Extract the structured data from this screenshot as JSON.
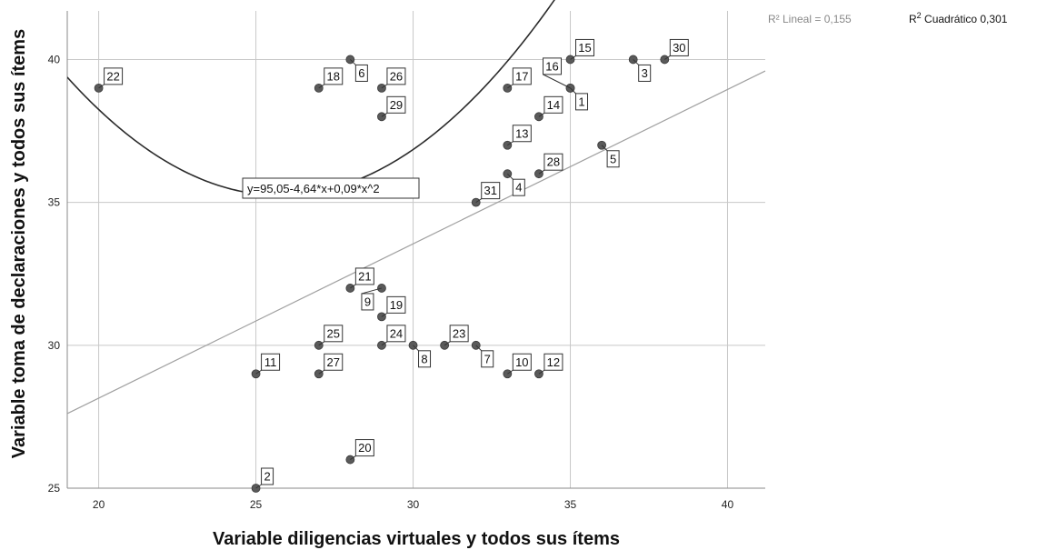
{
  "chart_data": {
    "type": "scatter",
    "xlabel": "Variable diligencias virtuales y todos sus ítems",
    "ylabel": "Variable toma de declaraciones y todos sus ítems",
    "xlim": [
      19,
      41.2
    ],
    "ylim": [
      25,
      41.7
    ],
    "x_ticks": [
      20,
      25,
      30,
      35,
      40
    ],
    "y_ticks": [
      25,
      30,
      35,
      40
    ],
    "grid": true,
    "points": [
      {
        "label": "1",
        "x": 35,
        "y": 39
      },
      {
        "label": "2",
        "x": 25,
        "y": 25
      },
      {
        "label": "3",
        "x": 37,
        "y": 40
      },
      {
        "label": "4",
        "x": 33,
        "y": 36
      },
      {
        "label": "5",
        "x": 36,
        "y": 37
      },
      {
        "label": "6",
        "x": 28,
        "y": 40
      },
      {
        "label": "7",
        "x": 32,
        "y": 30
      },
      {
        "label": "8",
        "x": 30,
        "y": 30
      },
      {
        "label": "9",
        "x": 29,
        "y": 32
      },
      {
        "label": "10",
        "x": 33,
        "y": 29
      },
      {
        "label": "11",
        "x": 25,
        "y": 29
      },
      {
        "label": "12",
        "x": 34,
        "y": 29
      },
      {
        "label": "13",
        "x": 33,
        "y": 37
      },
      {
        "label": "14",
        "x": 34,
        "y": 38
      },
      {
        "label": "15",
        "x": 35,
        "y": 40
      },
      {
        "label": "16",
        "x": 35,
        "y": 39
      },
      {
        "label": "17",
        "x": 33,
        "y": 39
      },
      {
        "label": "18",
        "x": 27,
        "y": 39
      },
      {
        "label": "19",
        "x": 29,
        "y": 31
      },
      {
        "label": "20",
        "x": 28,
        "y": 26
      },
      {
        "label": "21",
        "x": 28,
        "y": 32
      },
      {
        "label": "22",
        "x": 20,
        "y": 39
      },
      {
        "label": "23",
        "x": 31,
        "y": 30
      },
      {
        "label": "24",
        "x": 29,
        "y": 30
      },
      {
        "label": "25",
        "x": 27,
        "y": 30
      },
      {
        "label": "26",
        "x": 29,
        "y": 39
      },
      {
        "label": "27",
        "x": 27,
        "y": 29
      },
      {
        "label": "28",
        "x": 34,
        "y": 36
      },
      {
        "label": "29",
        "x": 29,
        "y": 38
      },
      {
        "label": "30",
        "x": 38,
        "y": 40
      },
      {
        "label": "31",
        "x": 32,
        "y": 35
      }
    ],
    "fits": {
      "linear": {
        "intercept": 17.35,
        "slope": 0.54,
        "color": "#a0a0a0"
      },
      "quadratic": {
        "c0": 95.05,
        "c1": -4.64,
        "c2": 0.09,
        "color": "#2b2b2b",
        "equation": "y=95,05-4,64*x+0,09*x^2"
      }
    },
    "legend": {
      "linear_text": "R² Lineal = 0,155",
      "quadratic_prefix": "R",
      "quadratic_sup": "2",
      "quadratic_suffix": " Cuadrático 0,301"
    },
    "colors": {
      "point": "#5a5a5a",
      "grid": "#c8c8c8",
      "axis": "#8a8a8a"
    }
  }
}
